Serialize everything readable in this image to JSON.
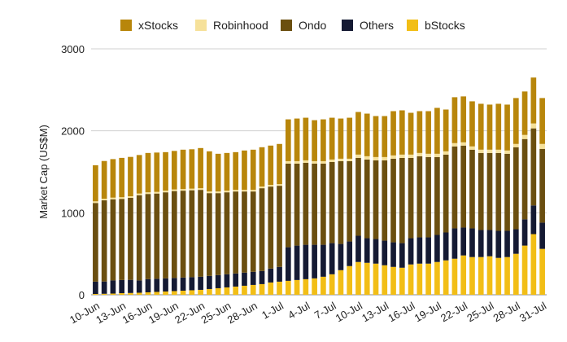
{
  "chart_data": {
    "type": "bar",
    "stacked": true,
    "ylabel": "Market Cap (US$M)",
    "xlabel": "",
    "ylim": [
      0,
      3000
    ],
    "yticks": [
      0,
      1000,
      2000,
      3000
    ],
    "grid": true,
    "legend_position": "top",
    "legend": [
      {
        "name": "xStocks",
        "color": "#B8860B"
      },
      {
        "name": "Robinhood",
        "color": "#F6E19A"
      },
      {
        "name": "Ondo",
        "color": "#6B4F10"
      },
      {
        "name": "Others",
        "color": "#151A33"
      },
      {
        "name": "bStocks",
        "color": "#F2BE16"
      }
    ],
    "tick_labels": [
      "10-Jun",
      "13-Jun",
      "16-Jun",
      "19-Jun",
      "22-Jun",
      "25-Jun",
      "28-Jun",
      "1-Jul",
      "4-Jul",
      "7-Jul",
      "10-Jul",
      "13-Jul",
      "16-Jul",
      "19-Jul",
      "22-Jul",
      "25-Jul",
      "28-Jul",
      "31-Jul"
    ],
    "categories": [
      "10-Jun",
      "11-Jun",
      "12-Jun",
      "13-Jun",
      "14-Jun",
      "15-Jun",
      "16-Jun",
      "17-Jun",
      "18-Jun",
      "19-Jun",
      "20-Jun",
      "21-Jun",
      "22-Jun",
      "23-Jun",
      "24-Jun",
      "25-Jun",
      "26-Jun",
      "27-Jun",
      "28-Jun",
      "29-Jun",
      "30-Jun",
      "1-Jul",
      "2-Jul",
      "3-Jul",
      "4-Jul",
      "5-Jul",
      "6-Jul",
      "7-Jul",
      "8-Jul",
      "9-Jul",
      "10-Jul",
      "11-Jul",
      "12-Jul",
      "13-Jul",
      "14-Jul",
      "15-Jul",
      "16-Jul",
      "17-Jul",
      "18-Jul",
      "19-Jul",
      "20-Jul",
      "21-Jul",
      "22-Jul",
      "23-Jul",
      "24-Jul",
      "25-Jul",
      "26-Jul",
      "27-Jul",
      "28-Jul",
      "29-Jul",
      "30-Jul",
      "31-Jul"
    ],
    "series": [
      {
        "name": "bStocks",
        "color": "#F2BE16",
        "values": [
          10,
          12,
          15,
          20,
          22,
          25,
          30,
          35,
          40,
          45,
          50,
          55,
          60,
          70,
          80,
          90,
          100,
          110,
          120,
          130,
          150,
          160,
          170,
          180,
          190,
          200,
          220,
          250,
          300,
          350,
          400,
          390,
          380,
          360,
          340,
          330,
          370,
          380,
          380,
          400,
          420,
          440,
          480,
          460,
          460,
          470,
          450,
          460,
          500,
          600,
          740,
          560
        ]
      },
      {
        "name": "Others",
        "color": "#151A33",
        "values": [
          150,
          150,
          160,
          160,
          160,
          150,
          160,
          160,
          160,
          160,
          160,
          160,
          160,
          160,
          160,
          160,
          160,
          160,
          160,
          160,
          170,
          180,
          410,
          420,
          420,
          410,
          390,
          380,
          320,
          300,
          320,
          300,
          300,
          300,
          300,
          300,
          320,
          320,
          320,
          330,
          340,
          370,
          340,
          350,
          330,
          320,
          330,
          320,
          300,
          320,
          350,
          320
        ]
      },
      {
        "name": "Ondo",
        "color": "#6B4F10",
        "values": [
          960,
          990,
          990,
          990,
          1000,
          1040,
          1040,
          1040,
          1050,
          1060,
          1060,
          1060,
          1060,
          1010,
          1000,
          1000,
          1000,
          990,
          980,
          1010,
          1000,
          990,
          1020,
          1000,
          1000,
          990,
          990,
          990,
          1010,
          980,
          950,
          960,
          960,
          980,
          1020,
          1040,
          980,
          990,
          980,
          950,
          950,
          1000,
          1000,
          960,
          940,
          940,
          950,
          940,
          1000,
          980,
          940,
          900
        ]
      },
      {
        "name": "Robinhood",
        "color": "#F6E19A",
        "values": [
          20,
          20,
          20,
          20,
          20,
          20,
          20,
          20,
          20,
          20,
          20,
          20,
          20,
          20,
          20,
          20,
          20,
          20,
          20,
          20,
          20,
          20,
          30,
          30,
          30,
          30,
          30,
          30,
          30,
          30,
          40,
          40,
          40,
          40,
          40,
          40,
          40,
          40,
          40,
          40,
          40,
          40,
          40,
          40,
          40,
          40,
          40,
          40,
          40,
          50,
          60,
          60
        ]
      },
      {
        "name": "xStocks",
        "color": "#B8860B",
        "values": [
          440,
          460,
          470,
          480,
          480,
          470,
          480,
          480,
          470,
          470,
          480,
          480,
          490,
          490,
          460,
          460,
          460,
          480,
          490,
          480,
          480,
          490,
          510,
          520,
          520,
          500,
          510,
          510,
          490,
          500,
          520,
          520,
          500,
          500,
          540,
          540,
          510,
          510,
          520,
          560,
          510,
          560,
          560,
          550,
          560,
          550,
          560,
          560,
          560,
          530,
          560,
          560
        ]
      }
    ]
  }
}
